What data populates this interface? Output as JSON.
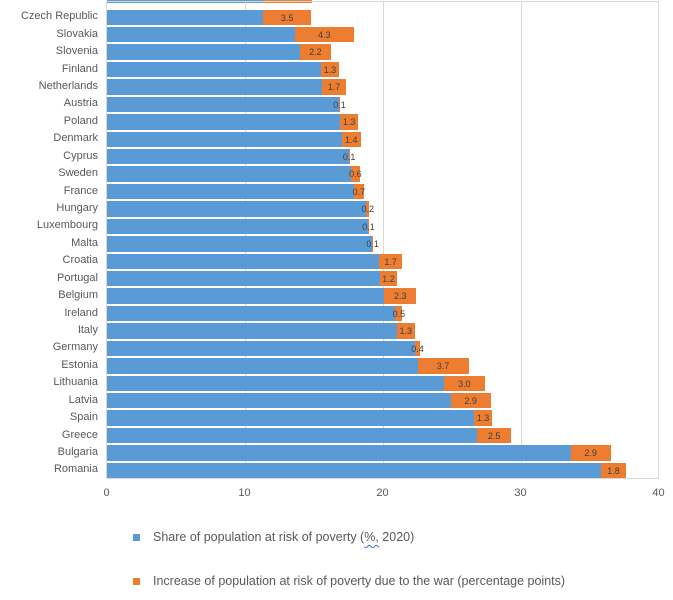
{
  "chart_data": {
    "type": "bar",
    "orientation": "horizontal",
    "stacked": true,
    "title": "",
    "categories": [
      "Czech Republic",
      "Slovakia",
      "Slovenia",
      "Finland",
      "Netherlands",
      "Austria",
      "Poland",
      "Denmark",
      "Cyprus",
      "Sweden",
      "France",
      "Hungary",
      "Luxembourg",
      "Malta",
      "Croatia",
      "Portugal",
      "Belgium",
      "Ireland",
      "Italy",
      "Germany",
      "Estonia",
      "Lithuania",
      "Latvia",
      "Spain",
      "Greece",
      "Bulgaria",
      "Romania"
    ],
    "series": [
      {
        "name": "Share of population at risk of poverty (%, 2020)",
        "color": "#5B9BD5",
        "values": [
          11.3,
          13.6,
          14.0,
          15.5,
          15.6,
          16.8,
          16.9,
          17.0,
          17.5,
          17.7,
          17.9,
          18.8,
          18.9,
          19.2,
          19.7,
          19.8,
          20.1,
          20.9,
          21.0,
          22.3,
          22.5,
          24.4,
          24.9,
          26.6,
          26.8,
          33.6,
          35.8
        ]
      },
      {
        "name": "Increase of population at risk of poverty due to the war (percentage points)",
        "color": "#ED7D31",
        "values": [
          3.5,
          4.3,
          2.2,
          1.3,
          1.7,
          0.1,
          1.3,
          1.4,
          0.1,
          0.6,
          0.7,
          0.2,
          0.1,
          0.1,
          1.7,
          1.2,
          2.3,
          0.5,
          1.3,
          0.4,
          3.7,
          3.0,
          2.9,
          1.3,
          2.5,
          2.9,
          1.8
        ],
        "data_labels": [
          "3.5",
          "4.3",
          "2.2",
          "1.3",
          "1.7",
          "0.1",
          "1.3",
          "1.4",
          "0.1",
          "0.6",
          "0.7",
          "0.2",
          "0.1",
          "0.1",
          "1.7",
          "1.2",
          "2.3",
          "0.5",
          "1.3",
          "0.4",
          "3.7",
          "3.0",
          "2.9",
          "1.3",
          "2.5",
          "2.9",
          "1.8"
        ]
      }
    ],
    "x_axis": {
      "min": 0,
      "max": 40,
      "tick_labels": [
        "0",
        "10",
        "20",
        "30",
        "40"
      ],
      "tick_values": [
        0,
        10,
        20,
        30,
        40
      ]
    },
    "gridlines": true,
    "legend_position": "bottom",
    "cropped_top_row": {
      "share_end": 11.3,
      "total_end": 14.9
    }
  },
  "legend": {
    "item1": {
      "prefix": "Share of population at risk of poverty (",
      "squiggle": "%,",
      "suffix": " 2020)"
    },
    "item2": {
      "label": "Increase of population at risk of poverty due to the war (percentage points)"
    }
  },
  "colors": {
    "share_blue": "#5B9BD5",
    "increase_orange": "#ED7D31",
    "gridline": "#D9D9D9",
    "value_label_text": "#404040",
    "axis_text": "#595959"
  }
}
